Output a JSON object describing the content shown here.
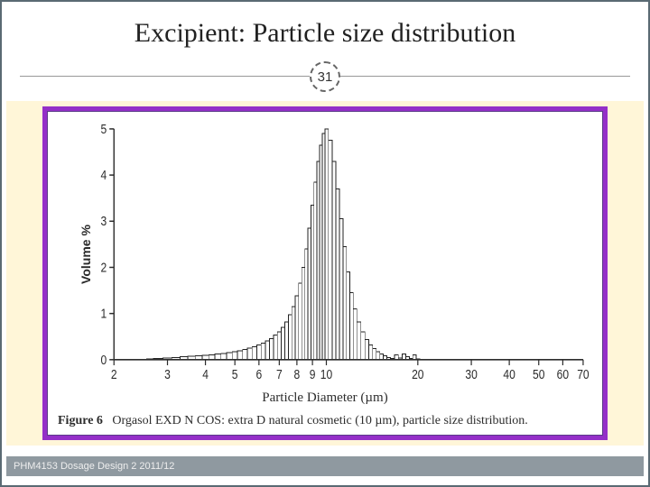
{
  "title": "Excipient: Particle size distribution",
  "slide_number": "31",
  "footer": "PHM4153 Dosage Design 2 2011/12",
  "caption_label": "Figure 6",
  "caption_text": "Orgasol EXD N COS: extra D natural cosmetic (10 µm), particle size distribution.",
  "chart": {
    "type": "distribution-bars-log-x",
    "y_label": "Volume %",
    "x_label": "Particle Diameter (µm)",
    "y_ticks": [
      0,
      1,
      2,
      3,
      4,
      5
    ],
    "ylim": [
      0,
      5
    ],
    "x_ticks": [
      2,
      3,
      4,
      5,
      6,
      7,
      8,
      9,
      10,
      20,
      30,
      40,
      50,
      60,
      70
    ],
    "xlim": [
      2,
      70
    ],
    "axis_color": "#2c2c2c",
    "bar_stroke": "#222222",
    "bar_fill": "#ffffff",
    "background_color": "#ffffff",
    "label_fontsize": 14,
    "tick_fontsize": 12,
    "bars": [
      {
        "x": 2.6,
        "v": 0.02
      },
      {
        "x": 2.8,
        "v": 0.03
      },
      {
        "x": 3.0,
        "v": 0.04
      },
      {
        "x": 3.2,
        "v": 0.05
      },
      {
        "x": 3.4,
        "v": 0.06
      },
      {
        "x": 3.6,
        "v": 0.07
      },
      {
        "x": 3.8,
        "v": 0.08
      },
      {
        "x": 4.0,
        "v": 0.09
      },
      {
        "x": 4.2,
        "v": 0.1
      },
      {
        "x": 4.4,
        "v": 0.12
      },
      {
        "x": 4.6,
        "v": 0.13
      },
      {
        "x": 4.8,
        "v": 0.15
      },
      {
        "x": 5.0,
        "v": 0.17
      },
      {
        "x": 5.2,
        "v": 0.19
      },
      {
        "x": 5.4,
        "v": 0.22
      },
      {
        "x": 5.6,
        "v": 0.25
      },
      {
        "x": 5.8,
        "v": 0.28
      },
      {
        "x": 6.0,
        "v": 0.32
      },
      {
        "x": 6.2,
        "v": 0.36
      },
      {
        "x": 6.4,
        "v": 0.41
      },
      {
        "x": 6.6,
        "v": 0.46
      },
      {
        "x": 6.8,
        "v": 0.53
      },
      {
        "x": 7.0,
        "v": 0.6
      },
      {
        "x": 7.2,
        "v": 0.7
      },
      {
        "x": 7.4,
        "v": 0.82
      },
      {
        "x": 7.6,
        "v": 0.97
      },
      {
        "x": 7.8,
        "v": 1.15
      },
      {
        "x": 8.0,
        "v": 1.38
      },
      {
        "x": 8.2,
        "v": 1.66
      },
      {
        "x": 8.4,
        "v": 2.0
      },
      {
        "x": 8.6,
        "v": 2.4
      },
      {
        "x": 8.8,
        "v": 2.85
      },
      {
        "x": 9.0,
        "v": 3.35
      },
      {
        "x": 9.2,
        "v": 3.85
      },
      {
        "x": 9.4,
        "v": 4.3
      },
      {
        "x": 9.6,
        "v": 4.65
      },
      {
        "x": 9.8,
        "v": 4.9
      },
      {
        "x": 10.0,
        "v": 5.0
      },
      {
        "x": 10.3,
        "v": 4.75
      },
      {
        "x": 10.6,
        "v": 4.3
      },
      {
        "x": 10.9,
        "v": 3.7
      },
      {
        "x": 11.2,
        "v": 3.05
      },
      {
        "x": 11.5,
        "v": 2.45
      },
      {
        "x": 11.8,
        "v": 1.9
      },
      {
        "x": 12.1,
        "v": 1.45
      },
      {
        "x": 12.4,
        "v": 1.1
      },
      {
        "x": 12.8,
        "v": 0.82
      },
      {
        "x": 13.2,
        "v": 0.6
      },
      {
        "x": 13.6,
        "v": 0.44
      },
      {
        "x": 14.0,
        "v": 0.32
      },
      {
        "x": 14.4,
        "v": 0.24
      },
      {
        "x": 14.8,
        "v": 0.17
      },
      {
        "x": 15.2,
        "v": 0.12
      },
      {
        "x": 15.6,
        "v": 0.08
      },
      {
        "x": 16.0,
        "v": 0.05
      },
      {
        "x": 16.5,
        "v": 0.03
      },
      {
        "x": 17.0,
        "v": 0.1
      },
      {
        "x": 17.5,
        "v": 0.04
      },
      {
        "x": 18.0,
        "v": 0.12
      },
      {
        "x": 18.5,
        "v": 0.06
      },
      {
        "x": 19.0,
        "v": 0.03
      },
      {
        "x": 19.5,
        "v": 0.1
      },
      {
        "x": 20.0,
        "v": 0.02
      }
    ]
  },
  "colors": {
    "slide_border": "#5a6a73",
    "band_bg": "#fff6d8",
    "card_border": "#9430c8",
    "footer_bg": "#8f99a0",
    "footer_text": "#eeeeee",
    "text": "#222222"
  }
}
